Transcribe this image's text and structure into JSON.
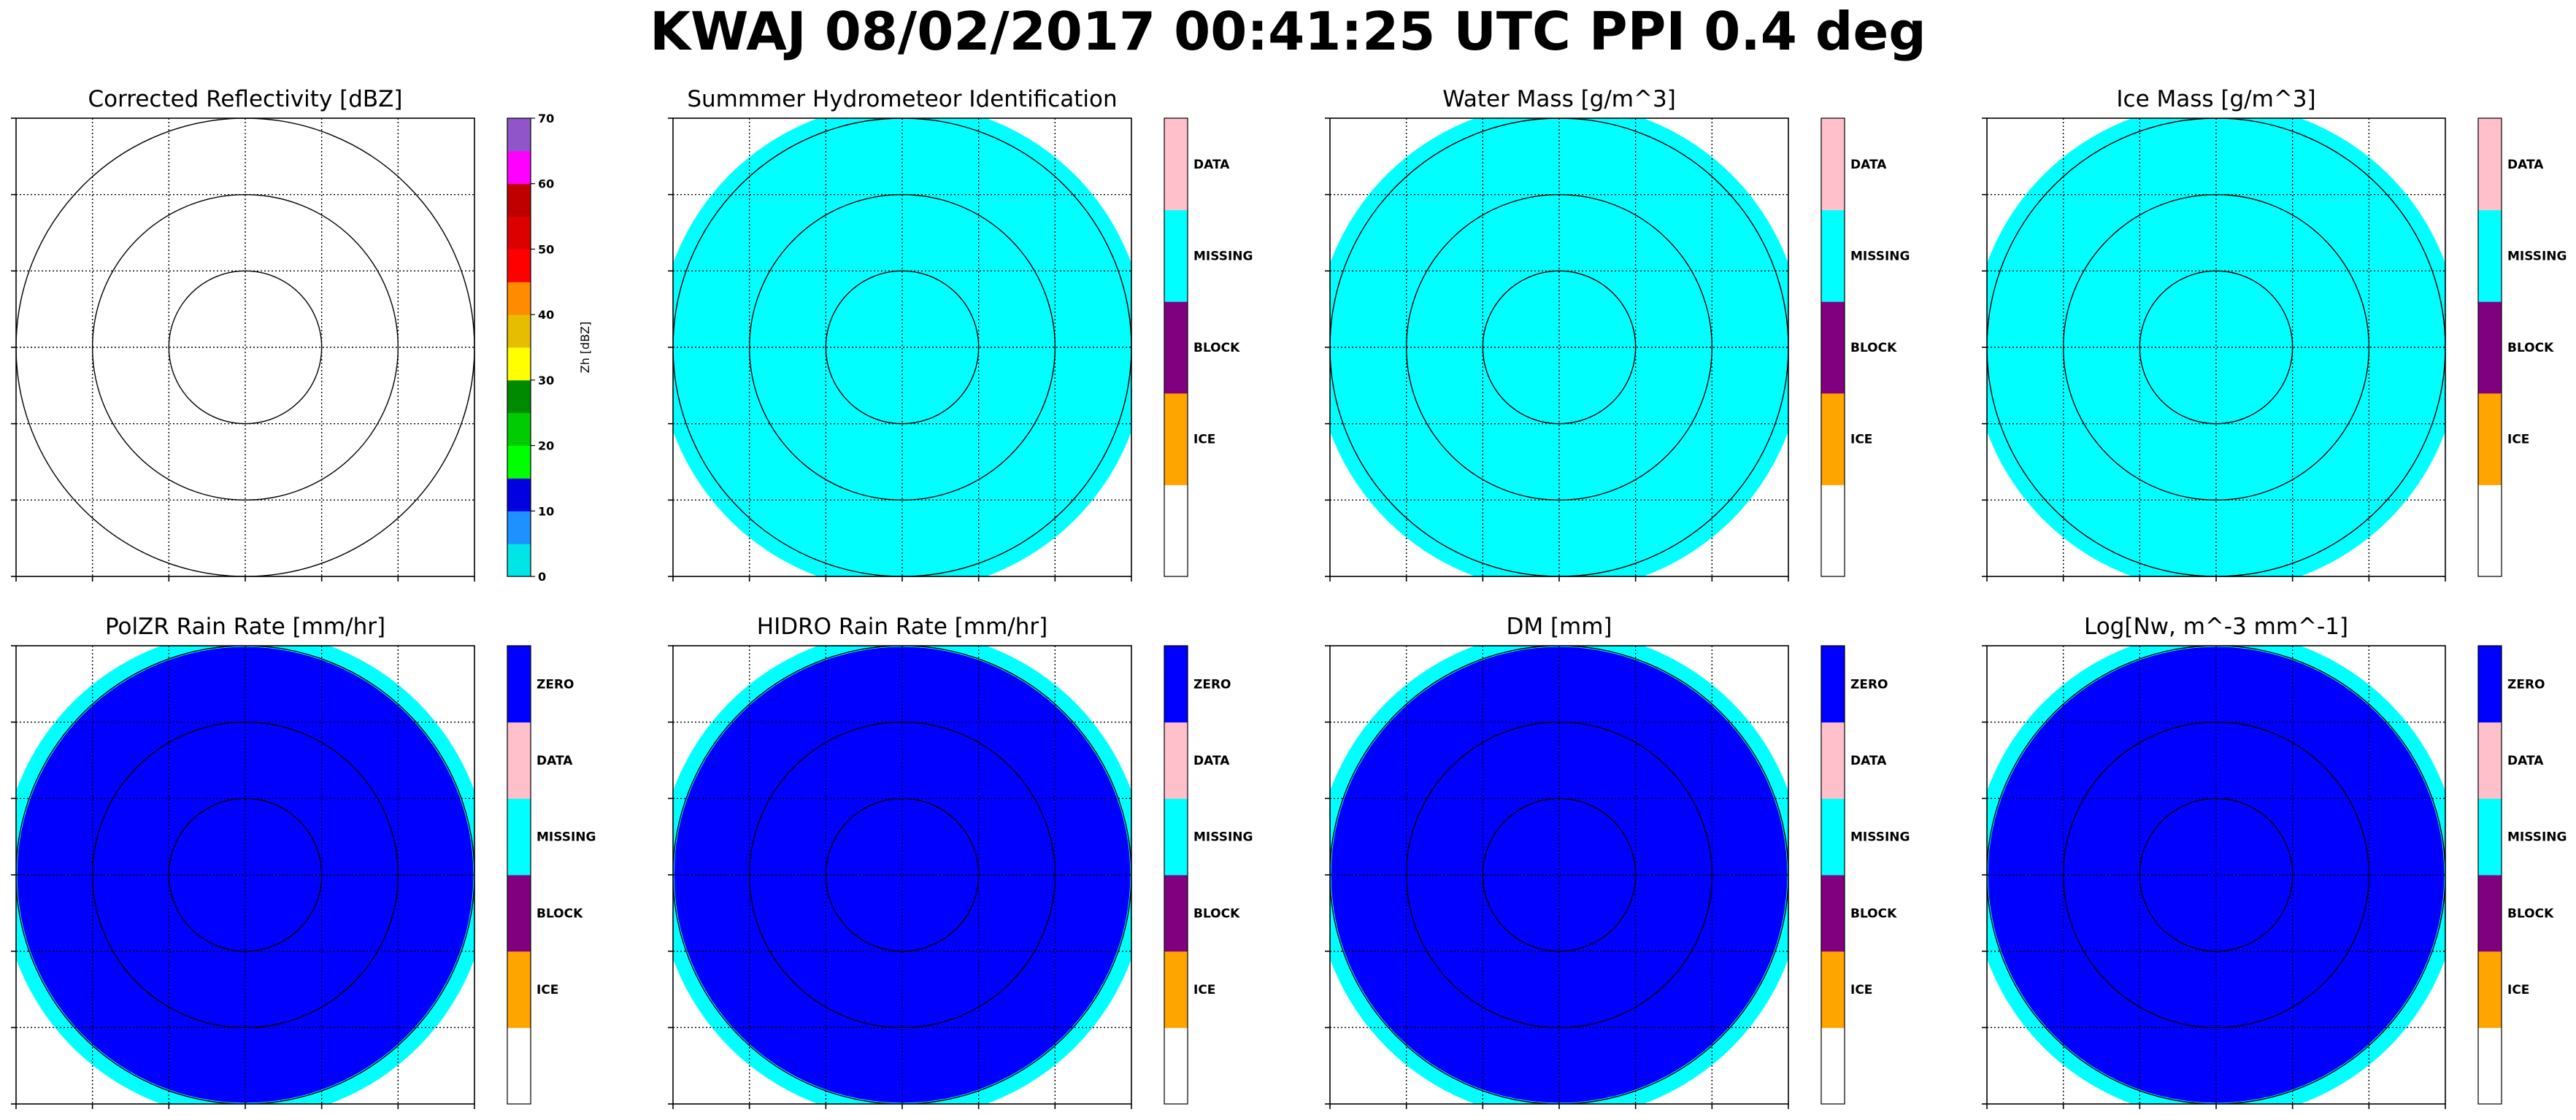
{
  "figure": {
    "suptitle": "KWAJ 08/02/2017 00:41:25 UTC PPI 0.4 deg"
  },
  "chart_data": [
    {
      "type": "heatmap",
      "title": "Corrected Reflectivity [dBZ]",
      "fill": "none",
      "colorbar": {
        "kind": "continuous",
        "label": "Zh [dBZ]",
        "range": [
          0,
          70
        ],
        "ticks": [
          "0",
          "10",
          "20",
          "30",
          "40",
          "50",
          "60",
          "70"
        ],
        "colors": [
          "#00e5e5",
          "#1e90ff",
          "#0000e0",
          "#00ff00",
          "#00cc00",
          "#008a00",
          "#ffff00",
          "#e6bd00",
          "#ff8c00",
          "#ff0000",
          "#dd0000",
          "#c00000",
          "#ff00ff",
          "#9055c8"
        ]
      },
      "range_rings": 3,
      "grid": true
    },
    {
      "type": "heatmap",
      "title": "Summmer Hydrometeor Identification",
      "fill": "missing",
      "colorbar": {
        "kind": "categorical",
        "labels": [
          "ICE",
          "BLOCK",
          "MISSING",
          "DATA"
        ],
        "colors": [
          "#ffffff",
          "#ffa500",
          "#800080",
          "#00ffff",
          "#ffc0cb"
        ]
      },
      "range_rings": 3,
      "grid": true
    },
    {
      "type": "heatmap",
      "title": "Water Mass [g/m^3]",
      "fill": "missing",
      "colorbar": {
        "kind": "categorical",
        "labels": [
          "ICE",
          "BLOCK",
          "MISSING",
          "DATA"
        ],
        "colors": [
          "#ffffff",
          "#ffa500",
          "#800080",
          "#00ffff",
          "#ffc0cb"
        ]
      },
      "range_rings": 3,
      "grid": true
    },
    {
      "type": "heatmap",
      "title": "Ice Mass [g/m^3]",
      "fill": "missing",
      "colorbar": {
        "kind": "categorical",
        "labels": [
          "ICE",
          "BLOCK",
          "MISSING",
          "DATA"
        ],
        "colors": [
          "#ffffff",
          "#ffa500",
          "#800080",
          "#00ffff",
          "#ffc0cb"
        ]
      },
      "range_rings": 3,
      "grid": true
    },
    {
      "type": "heatmap",
      "title": "PolZR Rain Rate [mm/hr]",
      "fill": "zero",
      "colorbar": {
        "kind": "categorical",
        "labels": [
          "ICE",
          "BLOCK",
          "MISSING",
          "DATA",
          "ZERO"
        ],
        "colors": [
          "#ffffff",
          "#ffa500",
          "#800080",
          "#00ffff",
          "#ffc0cb",
          "#0000ff"
        ]
      },
      "range_rings": 3,
      "grid": true
    },
    {
      "type": "heatmap",
      "title": "HIDRO Rain Rate [mm/hr]",
      "fill": "zero",
      "colorbar": {
        "kind": "categorical",
        "labels": [
          "ICE",
          "BLOCK",
          "MISSING",
          "DATA",
          "ZERO"
        ],
        "colors": [
          "#ffffff",
          "#ffa500",
          "#800080",
          "#00ffff",
          "#ffc0cb",
          "#0000ff"
        ]
      },
      "range_rings": 3,
      "grid": true
    },
    {
      "type": "heatmap",
      "title": "DM [mm]",
      "fill": "zero",
      "colorbar": {
        "kind": "categorical",
        "labels": [
          "ICE",
          "BLOCK",
          "MISSING",
          "DATA",
          "ZERO"
        ],
        "colors": [
          "#ffffff",
          "#ffa500",
          "#800080",
          "#00ffff",
          "#ffc0cb",
          "#0000ff"
        ]
      },
      "range_rings": 3,
      "grid": true
    },
    {
      "type": "heatmap",
      "title": "Log[Nw, m^-3 mm^-1]",
      "fill": "zero",
      "colorbar": {
        "kind": "categorical",
        "labels": [
          "ICE",
          "BLOCK",
          "MISSING",
          "DATA",
          "ZERO"
        ],
        "colors": [
          "#ffffff",
          "#ffa500",
          "#800080",
          "#00ffff",
          "#ffc0cb",
          "#0000ff"
        ]
      },
      "range_rings": 3,
      "grid": true
    }
  ]
}
